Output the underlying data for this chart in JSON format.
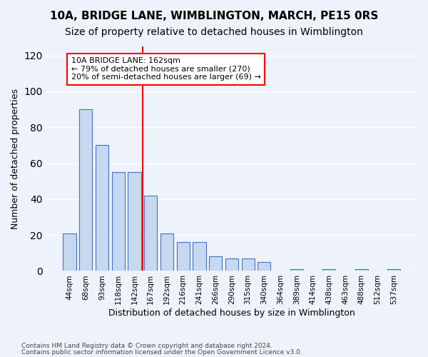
{
  "title_line1": "10A, BRIDGE LANE, WIMBLINGTON, MARCH, PE15 0RS",
  "title_line2": "Size of property relative to detached houses in Wimblington",
  "xlabel": "Distribution of detached houses by size in Wimblington",
  "ylabel": "Number of detached properties",
  "bin_labels": [
    "44sqm",
    "68sqm",
    "93sqm",
    "118sqm",
    "142sqm",
    "167sqm",
    "192sqm",
    "216sqm",
    "241sqm",
    "266sqm",
    "290sqm",
    "315sqm",
    "340sqm",
    "364sqm",
    "389sqm",
    "414sqm",
    "438sqm",
    "463sqm",
    "488sqm",
    "512sqm",
    "537sqm"
  ],
  "bin_values": [
    21,
    90,
    70,
    55,
    55,
    42,
    21,
    16,
    16,
    8,
    7,
    7,
    5,
    0,
    1,
    0,
    1,
    0,
    1,
    0,
    1
  ],
  "bar_color": "#c6d9f0",
  "bar_edge_color": "#4472c4",
  "red_line_x": 4.5,
  "annotation_text": "10A BRIDGE LANE: 162sqm\n← 79% of detached houses are smaller (270)\n20% of semi-detached houses are larger (69) →",
  "annotation_box_color": "white",
  "annotation_box_edge_color": "red",
  "ylim": [
    0,
    125
  ],
  "yticks": [
    0,
    20,
    40,
    60,
    80,
    100,
    120
  ],
  "footer_line1": "Contains HM Land Registry data © Crown copyright and database right 2024.",
  "footer_line2": "Contains public sector information licensed under the Open Government Licence v3.0.",
  "background_color": "#eef3fb",
  "grid_color": "white",
  "title_fontsize": 11,
  "subtitle_fontsize": 10,
  "bar_width": 0.8
}
